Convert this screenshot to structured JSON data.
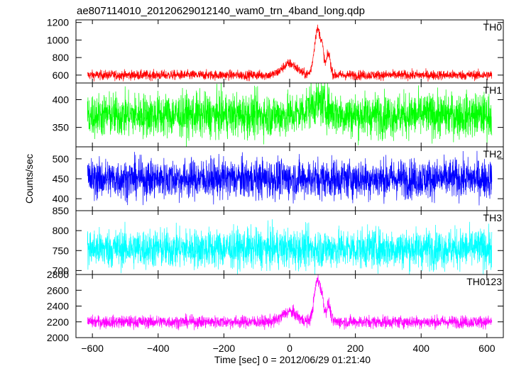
{
  "chart_data": {
    "type": "line",
    "title": "ae807114010_20120629012140_wam0_trn_4band_long.qdp",
    "xlabel": "Time [sec] 0 = 2012/06/29 01:21:40",
    "ylabel": "Counts/sec",
    "xlim": [
      -650,
      650
    ],
    "xticks": [
      -600,
      -400,
      -200,
      0,
      200,
      400,
      600
    ],
    "xtick_labels": [
      "−600",
      "−400",
      "−200",
      "0",
      "200",
      "400",
      "600"
    ],
    "grid": false,
    "panels": [
      {
        "name": "TH0",
        "color": "#ff0000",
        "ylim": [
          510,
          1230
        ],
        "yticks": [
          600,
          800,
          1000,
          1200
        ],
        "ytick_labels": [
          "600",
          "800",
          "1000",
          "1200"
        ],
        "baseline": 600,
        "noise": 28,
        "features": [
          {
            "center": 0,
            "width": 22,
            "amp": 130
          },
          {
            "center": 85,
            "width": 10,
            "amp": 520
          },
          {
            "center": 100,
            "width": 5,
            "amp": 170
          },
          {
            "center": 118,
            "width": 6,
            "amp": 240
          }
        ]
      },
      {
        "name": "TH1",
        "color": "#00ff00",
        "ylim": [
          315,
          430
        ],
        "yticks": [
          350,
          400
        ],
        "ytick_labels": [
          "350",
          "400"
        ],
        "baseline": 372,
        "noise": 20,
        "features": [
          {
            "center": 85,
            "width": 30,
            "amp": 22
          }
        ]
      },
      {
        "name": "TH2",
        "color": "#0000ff",
        "ylim": [
          370,
          530
        ],
        "yticks": [
          400,
          450,
          500
        ],
        "ytick_labels": [
          "400",
          "450",
          "500"
        ],
        "baseline": 450,
        "noise": 25,
        "features": []
      },
      {
        "name": "TH3",
        "color": "#00ffff",
        "ylim": [
          690,
          850
        ],
        "yticks": [
          700,
          750,
          800,
          850
        ],
        "ytick_labels": [
          "700",
          "750",
          "800",
          "850"
        ],
        "baseline": 755,
        "noise": 25,
        "features": []
      },
      {
        "name": "TH0123",
        "color": "#ff00ff",
        "ylim": [
          2000,
          2800
        ],
        "yticks": [
          2000,
          2200,
          2400,
          2600,
          2800
        ],
        "ytick_labels": [
          "2000",
          "2200",
          "2400",
          "2600",
          "2800"
        ],
        "baseline": 2200,
        "noise": 40,
        "features": [
          {
            "center": 0,
            "width": 22,
            "amp": 130
          },
          {
            "center": 85,
            "width": 10,
            "amp": 530
          },
          {
            "center": 100,
            "width": 5,
            "amp": 160
          },
          {
            "center": 118,
            "width": 6,
            "amp": 220
          }
        ]
      }
    ]
  }
}
